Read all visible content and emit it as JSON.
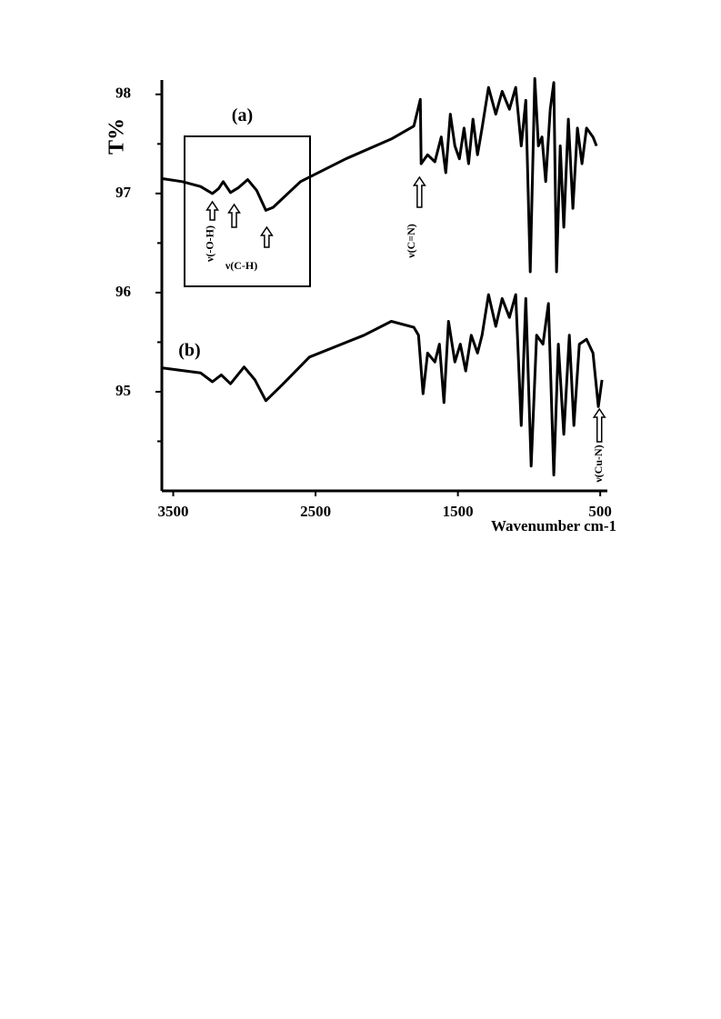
{
  "chart_data": {
    "type": "line",
    "ylabel": "T%",
    "xlabel": "Wavenumber cm-1",
    "xlim": [
      3580,
      450
    ],
    "xticks": [
      3500,
      2500,
      1500,
      500
    ],
    "ylim": [
      94,
      98.2
    ],
    "yticks": [
      95,
      96,
      97,
      98
    ],
    "yminorticks": [
      94.5,
      95.5,
      96.5,
      97.5
    ],
    "series": [
      {
        "name": "(a)",
        "color": "#000000",
        "x": [
          3577,
          3436,
          3308,
          3225,
          3181,
          3149,
          3098,
          3040,
          2977,
          2913,
          2849,
          2798,
          2606,
          2287,
          1968,
          1809,
          1764,
          1758,
          1713,
          1662,
          1617,
          1585,
          1553,
          1521,
          1489,
          1457,
          1425,
          1394,
          1362,
          1330,
          1285,
          1234,
          1189,
          1138,
          1094,
          1055,
          1023,
          992,
          960,
          934,
          909,
          883,
          851,
          826,
          807,
          781,
          756,
          724,
          692,
          660,
          628,
          596,
          551,
          526
        ],
        "values": [
          97.15,
          97.12,
          97.07,
          97.0,
          97.05,
          97.12,
          97.01,
          97.06,
          97.14,
          97.03,
          96.83,
          96.86,
          97.12,
          97.35,
          97.55,
          97.68,
          97.95,
          97.3,
          97.39,
          97.32,
          97.57,
          97.21,
          97.8,
          97.48,
          97.35,
          97.66,
          97.3,
          97.75,
          97.39,
          97.66,
          98.07,
          97.8,
          98.03,
          97.85,
          98.07,
          97.48,
          97.94,
          96.21,
          98.16,
          97.48,
          97.57,
          97.12,
          97.85,
          98.12,
          96.21,
          97.48,
          96.66,
          97.75,
          96.85,
          97.66,
          97.3,
          97.66,
          97.57,
          97.48
        ]
      },
      {
        "name": "(b)",
        "color": "#000000",
        "x": [
          3577,
          3308,
          3225,
          3162,
          3098,
          3002,
          2926,
          2849,
          2734,
          2543,
          2160,
          1968,
          1809,
          1777,
          1745,
          1713,
          1662,
          1630,
          1598,
          1566,
          1521,
          1483,
          1445,
          1406,
          1362,
          1330,
          1285,
          1234,
          1189,
          1138,
          1094,
          1055,
          1023,
          985,
          947,
          902,
          864,
          826,
          794,
          756,
          717,
          685,
          647,
          596,
          551,
          513,
          488
        ],
        "values": [
          95.24,
          95.19,
          95.1,
          95.17,
          95.08,
          95.25,
          95.12,
          94.91,
          95.07,
          95.35,
          95.57,
          95.71,
          95.65,
          95.57,
          94.98,
          95.39,
          95.3,
          95.48,
          94.89,
          95.71,
          95.3,
          95.48,
          95.21,
          95.57,
          95.39,
          95.57,
          95.98,
          95.66,
          95.94,
          95.75,
          95.98,
          94.66,
          95.94,
          94.25,
          95.57,
          95.48,
          95.89,
          94.16,
          95.48,
          94.57,
          95.57,
          94.66,
          95.48,
          95.53,
          95.39,
          94.85,
          95.12
        ]
      }
    ],
    "annotations": [
      {
        "text": "ν(-O-H)",
        "x": [
          3225
        ]
      },
      {
        "text": "ν(C-H)",
        "x": [
          3072,
          2843
        ]
      },
      {
        "text": "ν(C=N)",
        "x": [
          1770
        ]
      },
      {
        "text": "ν(Cu-N)",
        "x": [
          506
        ]
      }
    ]
  }
}
